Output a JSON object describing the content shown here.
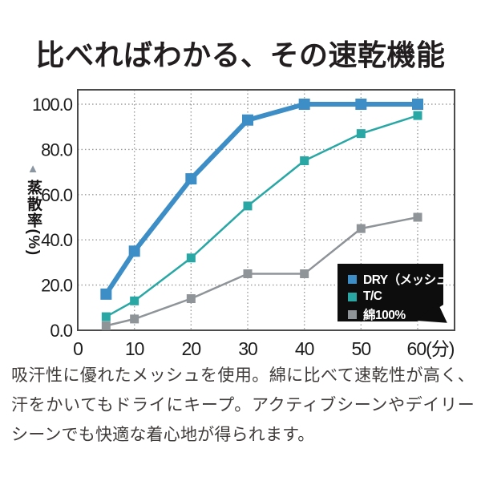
{
  "header": {
    "title": "比べればわかる、その速乾機能"
  },
  "chart_data": {
    "type": "line",
    "title": "比べればわかる、その速乾機能",
    "xlabel": "(分)",
    "ylabel": "蒸散率(%)",
    "ylabel_icon": "▲",
    "x": [
      5,
      10,
      20,
      30,
      40,
      50,
      60
    ],
    "series": [
      {
        "name": "DRY（メッシュ）",
        "values": [
          16,
          35,
          67,
          93,
          100,
          100,
          100
        ],
        "color": "#3d8ec6",
        "line_width": 6,
        "marker_size": 14
      },
      {
        "name": "T/C",
        "values": [
          6,
          13,
          32,
          55,
          75,
          87,
          95
        ],
        "color": "#28a7a5",
        "line_width": 2.5,
        "marker_size": 11
      },
      {
        "name": "綿100%",
        "values": [
          2,
          5,
          14,
          25,
          25,
          45,
          50
        ],
        "color": "#8f9498",
        "line_width": 2.5,
        "marker_size": 11
      }
    ],
    "xlim": [
      0,
      60
    ],
    "ylim": [
      0,
      100
    ],
    "xticks": [
      0,
      10,
      20,
      30,
      40,
      50,
      60
    ],
    "xtick_labels": [
      "0",
      "10",
      "20",
      "30",
      "40",
      "50",
      "60(分)"
    ],
    "yticks": [
      100,
      80,
      60,
      40,
      20,
      0
    ],
    "ytick_labels": [
      "100.0",
      "80.0",
      "60.0",
      "40.0",
      "20.0",
      "0.0"
    ],
    "grid": "dotted",
    "legend_position": "bottom-right",
    "legend_bg": "#0d0d0d",
    "legend_text_color": "#ffffff"
  },
  "description": {
    "text": "吸汗性に優れたメッシュを使用。綿に比べて速乾性が高く、汗をかいてもドライにキープ。アクティブシーンやデイリーシーンでも快適な着心地が得られます。"
  }
}
